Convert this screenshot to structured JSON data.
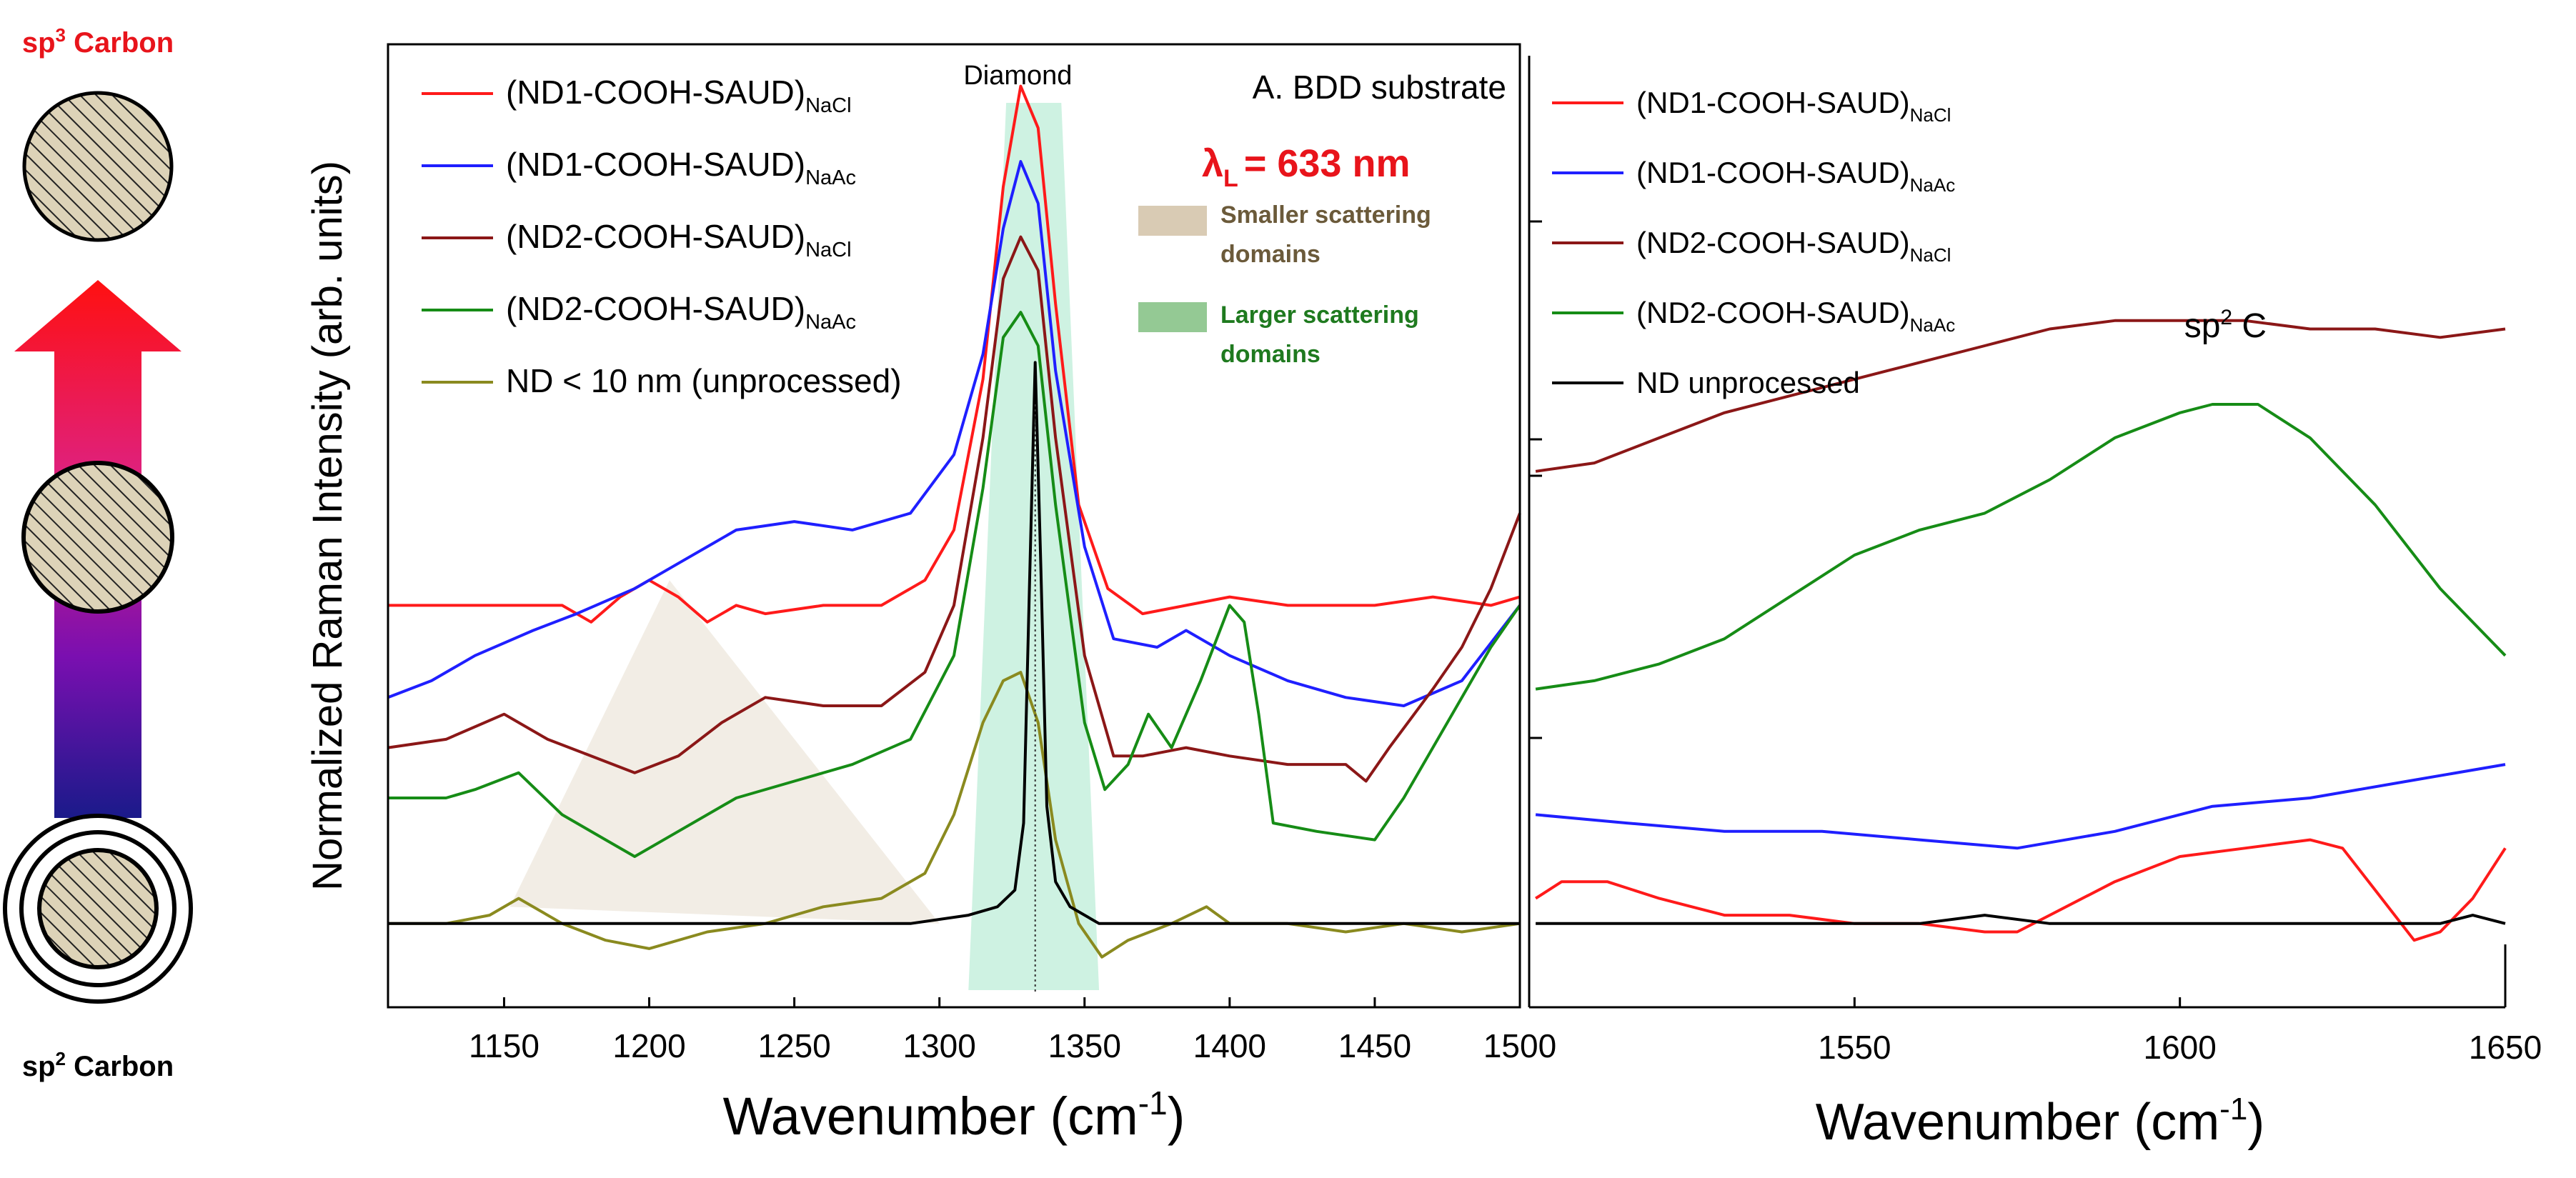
{
  "schematic": {
    "top_label_base": "sp",
    "top_label_sup": "3",
    "top_label_rest": " Carbon",
    "bottom_label_base": "sp",
    "bottom_label_sup": "2",
    "bottom_label_rest": " Carbon",
    "top_color": "#e8141b",
    "bottom_color": "#000000"
  },
  "chart_data": [
    {
      "type": "line",
      "title": "A. BDD substrate",
      "xlabel": "Wavenumber (cm",
      "xlabel_sup": "-1",
      "xlabel_close": ")",
      "ylabel": "Normalized Raman Intensity (arb. units)",
      "xlim": [
        1110,
        1500
      ],
      "ylim": [
        -0.1,
        1.05
      ],
      "xticks": [
        1150,
        1200,
        1250,
        1300,
        1350,
        1400,
        1450,
        1500
      ],
      "laser": {
        "prefix": "λ",
        "sub": "L",
        "text": "= 633 nm",
        "color": "#e8141b"
      },
      "peak_label": {
        "text": "Diamond",
        "x": 1327
      },
      "dotted_line_x": 1333,
      "shaded_regions": [
        {
          "name": "Smaller scattering domains",
          "shape": "triangle",
          "x_range": [
            1152,
            1300
          ],
          "peak_x": 1207,
          "peak_y": 0.41,
          "color": "#d9cbb4",
          "label_color": "#6b5a3a"
        },
        {
          "name": "Larger scattering domains",
          "shape": "trapezoid",
          "x_range": [
            1310,
            1355
          ],
          "color": "#aee9cf",
          "label_color": "#1f7a1f"
        }
      ],
      "series": [
        {
          "name": "(ND1-COOH-SAUD)",
          "sub": "NaCl",
          "color": "#ff1a1a",
          "x": [
            1110,
            1130,
            1150,
            1170,
            1180,
            1190,
            1200,
            1210,
            1220,
            1230,
            1240,
            1260,
            1280,
            1295,
            1305,
            1315,
            1322,
            1328,
            1334,
            1340,
            1348,
            1358,
            1370,
            1385,
            1400,
            1420,
            1450,
            1470,
            1490,
            1500
          ],
          "y": [
            0.38,
            0.38,
            0.38,
            0.38,
            0.36,
            0.39,
            0.41,
            0.39,
            0.36,
            0.38,
            0.37,
            0.38,
            0.38,
            0.41,
            0.47,
            0.65,
            0.88,
            1.0,
            0.95,
            0.74,
            0.5,
            0.4,
            0.37,
            0.38,
            0.39,
            0.38,
            0.38,
            0.39,
            0.38,
            0.39
          ]
        },
        {
          "name": "(ND1-COOH-SAUD)",
          "sub": "NaAc",
          "color": "#1f1fff",
          "x": [
            1110,
            1125,
            1140,
            1160,
            1175,
            1195,
            1210,
            1230,
            1250,
            1270,
            1290,
            1305,
            1315,
            1322,
            1328,
            1334,
            1340,
            1350,
            1360,
            1375,
            1385,
            1400,
            1420,
            1440,
            1460,
            1480,
            1500
          ],
          "y": [
            0.27,
            0.29,
            0.32,
            0.35,
            0.37,
            0.4,
            0.43,
            0.47,
            0.48,
            0.47,
            0.49,
            0.56,
            0.68,
            0.83,
            0.91,
            0.86,
            0.66,
            0.45,
            0.34,
            0.33,
            0.35,
            0.32,
            0.29,
            0.27,
            0.26,
            0.29,
            0.38
          ]
        },
        {
          "name": "(ND2-COOH-SAUD)",
          "sub": "NaCl",
          "color": "#8b1717",
          "x": [
            1110,
            1130,
            1150,
            1165,
            1180,
            1195,
            1210,
            1225,
            1240,
            1260,
            1280,
            1295,
            1305,
            1315,
            1322,
            1328,
            1334,
            1340,
            1350,
            1360,
            1370,
            1385,
            1400,
            1420,
            1440,
            1447,
            1455,
            1470,
            1480,
            1490,
            1500
          ],
          "y": [
            0.21,
            0.22,
            0.25,
            0.22,
            0.2,
            0.18,
            0.2,
            0.24,
            0.27,
            0.26,
            0.26,
            0.3,
            0.38,
            0.58,
            0.77,
            0.82,
            0.78,
            0.58,
            0.32,
            0.2,
            0.2,
            0.21,
            0.2,
            0.19,
            0.19,
            0.17,
            0.21,
            0.28,
            0.33,
            0.4,
            0.49
          ]
        },
        {
          "name": "(ND2-COOH-SAUD)",
          "sub": "NaAc",
          "color": "#168c16",
          "x": [
            1110,
            1130,
            1140,
            1155,
            1170,
            1185,
            1195,
            1210,
            1230,
            1250,
            1270,
            1290,
            1305,
            1315,
            1322,
            1328,
            1334,
            1340,
            1350,
            1357,
            1365,
            1372,
            1380,
            1390,
            1400,
            1405,
            1410,
            1415,
            1430,
            1450,
            1460,
            1475,
            1490,
            1500
          ],
          "y": [
            0.15,
            0.15,
            0.16,
            0.18,
            0.13,
            0.1,
            0.08,
            0.11,
            0.15,
            0.17,
            0.19,
            0.22,
            0.32,
            0.52,
            0.7,
            0.73,
            0.69,
            0.5,
            0.24,
            0.16,
            0.19,
            0.25,
            0.21,
            0.29,
            0.38,
            0.36,
            0.25,
            0.12,
            0.11,
            0.1,
            0.15,
            0.24,
            0.33,
            0.38
          ]
        },
        {
          "name": "ND < 10 nm (unprocessed)",
          "sub": "",
          "color": "#8a8a1f",
          "x": [
            1110,
            1130,
            1145,
            1155,
            1170,
            1185,
            1200,
            1220,
            1240,
            1260,
            1280,
            1295,
            1305,
            1315,
            1322,
            1328,
            1334,
            1340,
            1348,
            1356,
            1365,
            1380,
            1392,
            1400,
            1420,
            1440,
            1460,
            1480,
            1500
          ],
          "y": [
            0.0,
            0.0,
            0.01,
            0.03,
            0.0,
            -0.02,
            -0.03,
            -0.01,
            0.0,
            0.02,
            0.03,
            0.06,
            0.13,
            0.24,
            0.29,
            0.3,
            0.24,
            0.1,
            0.0,
            -0.04,
            -0.02,
            0.0,
            0.02,
            0.0,
            0.0,
            -0.01,
            0.0,
            -0.01,
            0.0
          ]
        },
        {
          "name": "ND unprocessed",
          "sub": "",
          "color": "#000000",
          "legend": false,
          "x": [
            1110,
            1140,
            1170,
            1200,
            1230,
            1260,
            1290,
            1310,
            1320,
            1326,
            1329,
            1331,
            1333,
            1335,
            1337,
            1340,
            1345,
            1355,
            1380,
            1410,
            1440,
            1470,
            1500
          ],
          "y": [
            0.0,
            0.0,
            0.0,
            0.0,
            0.0,
            0.0,
            0.0,
            0.01,
            0.02,
            0.04,
            0.12,
            0.4,
            0.67,
            0.42,
            0.14,
            0.05,
            0.02,
            0.0,
            0.0,
            0.0,
            0.0,
            0.0,
            0.0
          ]
        }
      ]
    },
    {
      "type": "line",
      "title": "",
      "xlabel": "Wavenumber (cm",
      "xlabel_sup": "-1",
      "xlabel_close": ")",
      "ylabel": "",
      "xlim": [
        1500,
        1650
      ],
      "ylim": [
        -0.1,
        1.05
      ],
      "xticks": [
        1550,
        1600,
        1650
      ],
      "annotation": {
        "text": "sp",
        "sup": "2",
        "rest": " C",
        "x": 1607
      },
      "series": [
        {
          "name": "(ND1-COOH-SAUD)",
          "sub": "NaCl",
          "color": "#ff1a1a",
          "x": [
            1501,
            1505,
            1512,
            1520,
            1530,
            1540,
            1550,
            1560,
            1570,
            1575,
            1580,
            1590,
            1600,
            1610,
            1620,
            1625,
            1630,
            1636,
            1640,
            1645,
            1650
          ],
          "y": [
            0.03,
            0.05,
            0.05,
            0.03,
            0.01,
            0.01,
            0.0,
            0.0,
            -0.01,
            -0.01,
            0.01,
            0.05,
            0.08,
            0.09,
            0.1,
            0.09,
            0.04,
            -0.02,
            -0.01,
            0.03,
            0.09
          ]
        },
        {
          "name": "(ND1-COOH-SAUD)",
          "sub": "NaAc",
          "color": "#1f1fff",
          "x": [
            1501,
            1515,
            1530,
            1545,
            1560,
            1575,
            1590,
            1605,
            1620,
            1635,
            1650
          ],
          "y": [
            0.13,
            0.12,
            0.11,
            0.11,
            0.1,
            0.09,
            0.11,
            0.14,
            0.15,
            0.17,
            0.19
          ]
        },
        {
          "name": "(ND2-COOH-SAUD)",
          "sub": "NaCl",
          "color": "#8b1717",
          "x": [
            1501,
            1510,
            1520,
            1530,
            1545,
            1555,
            1570,
            1580,
            1590,
            1600,
            1610,
            1620,
            1630,
            1640,
            1650
          ],
          "y": [
            0.54,
            0.55,
            0.58,
            0.61,
            0.64,
            0.66,
            0.69,
            0.71,
            0.72,
            0.72,
            0.72,
            0.71,
            0.71,
            0.7,
            0.71
          ]
        },
        {
          "name": "(ND2-COOH-SAUD)",
          "sub": "NaAc",
          "color": "#168c16",
          "x": [
            1501,
            1510,
            1520,
            1530,
            1540,
            1550,
            1560,
            1570,
            1580,
            1590,
            1600,
            1605,
            1612,
            1620,
            1630,
            1640,
            1650
          ],
          "y": [
            0.28,
            0.29,
            0.31,
            0.34,
            0.39,
            0.44,
            0.47,
            0.49,
            0.53,
            0.58,
            0.61,
            0.62,
            0.62,
            0.58,
            0.5,
            0.4,
            0.32
          ]
        },
        {
          "name": "ND unprocessed",
          "sub": "",
          "color": "#000000",
          "x": [
            1501,
            1520,
            1540,
            1560,
            1570,
            1580,
            1600,
            1620,
            1640,
            1645,
            1650
          ],
          "y": [
            0.0,
            0.0,
            0.0,
            0.0,
            0.01,
            0.0,
            0.0,
            0.0,
            0.0,
            0.01,
            0.0
          ]
        }
      ]
    }
  ]
}
